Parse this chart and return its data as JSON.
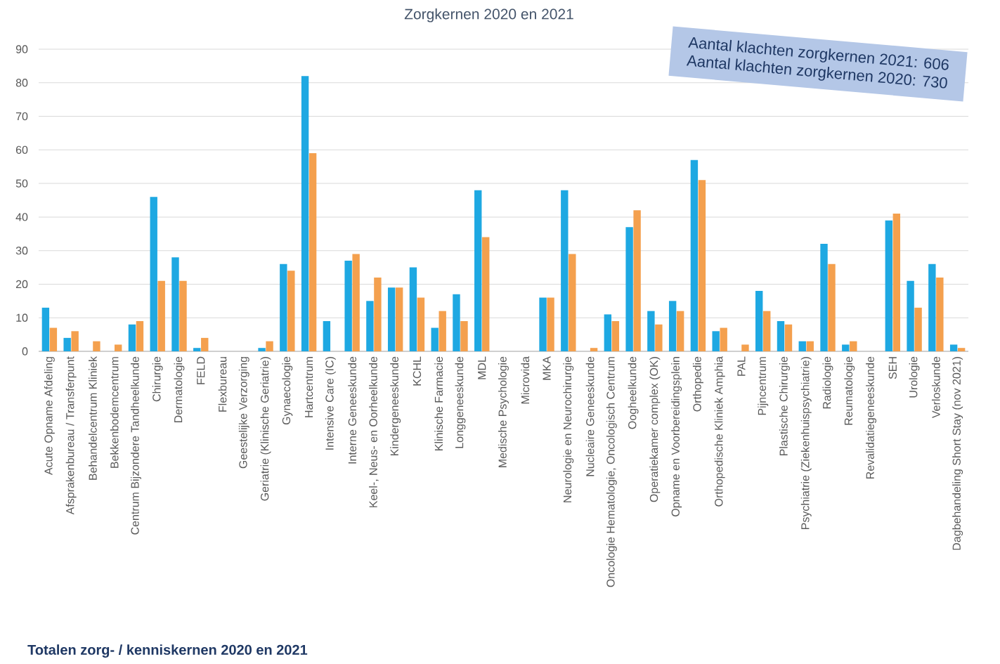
{
  "chart_data": {
    "type": "bar",
    "title": "Zorgkernen 2020 en 2021",
    "categories": [
      "Acute Opname Afdeling",
      "Afsprakenbureau / Transferpunt",
      "Behandelcentrum Kliniek",
      "Bekkenbodemcentrum",
      "Centrum Bijzondere Tandheelkunde",
      "Chirurgie",
      "Dermatologie",
      "FELD",
      "Flexbureau",
      "Geestelijke Verzorging",
      "Geriatrie (Klinische Geriatrie)",
      "Gynaecologie",
      "Hartcentrum",
      "Intensive Care (IC)",
      "Interne Geneeskunde",
      "Keel-, Neus- en Oorheelkunde",
      "Kindergeneeskunde",
      "KCHL",
      "Klinische Farmacie",
      "Longgeneeskunde",
      "MDL",
      "Medische Psychologie",
      "Microvida",
      "MKA",
      "Neurologie en Neurochirurgie",
      "Nucleaire Geneeskunde",
      "Oncologie Hematologie, Oncologisch Centrum",
      "Oogheelkunde",
      "Operatiekamer complex (OK)",
      "Opname en Voorbereidingsplein",
      "Orthopedie",
      "Orthopedische Kliniek Amphia",
      "PAL",
      "Pijncentrum",
      "Plastische Chirurgie",
      "Psychiatrie (Ziekenhuispsychiatrie)",
      "Radiologie",
      "Reumatologie",
      "Revalidatiegeneeskunde",
      "SEH",
      "Urologie",
      "Verloskunde",
      "Dagbehandeling Short Stay (nov 2021)"
    ],
    "series": [
      {
        "color": "#1ea8e2",
        "values": [
          13,
          4,
          0,
          0,
          8,
          46,
          28,
          1,
          0,
          0,
          1,
          26,
          82,
          9,
          27,
          15,
          19,
          25,
          7,
          17,
          48,
          0,
          0,
          16,
          48,
          0,
          11,
          37,
          12,
          15,
          57,
          6,
          0,
          18,
          9,
          3,
          32,
          2,
          0,
          39,
          21,
          26,
          2
        ]
      },
      {
        "color": "#f4a04e",
        "values": [
          7,
          6,
          3,
          2,
          9,
          21,
          21,
          4,
          0,
          0,
          3,
          24,
          59,
          0,
          29,
          22,
          19,
          16,
          12,
          9,
          34,
          0,
          0,
          16,
          29,
          1,
          9,
          42,
          8,
          12,
          51,
          7,
          2,
          12,
          8,
          3,
          26,
          3,
          0,
          41,
          13,
          22,
          1
        ]
      }
    ],
    "ylim": [
      0,
      90
    ],
    "yticks": [
      0,
      10,
      20,
      30,
      40,
      50,
      60,
      70,
      80,
      90
    ],
    "grid": "y",
    "annotations": [
      "Aantal klachten zorgkernen 2021: 606",
      "Aantal klachten zorgkernen 2020: 730",
      "Totalen zorg- / kenniskernen 2020 en 2021"
    ]
  }
}
